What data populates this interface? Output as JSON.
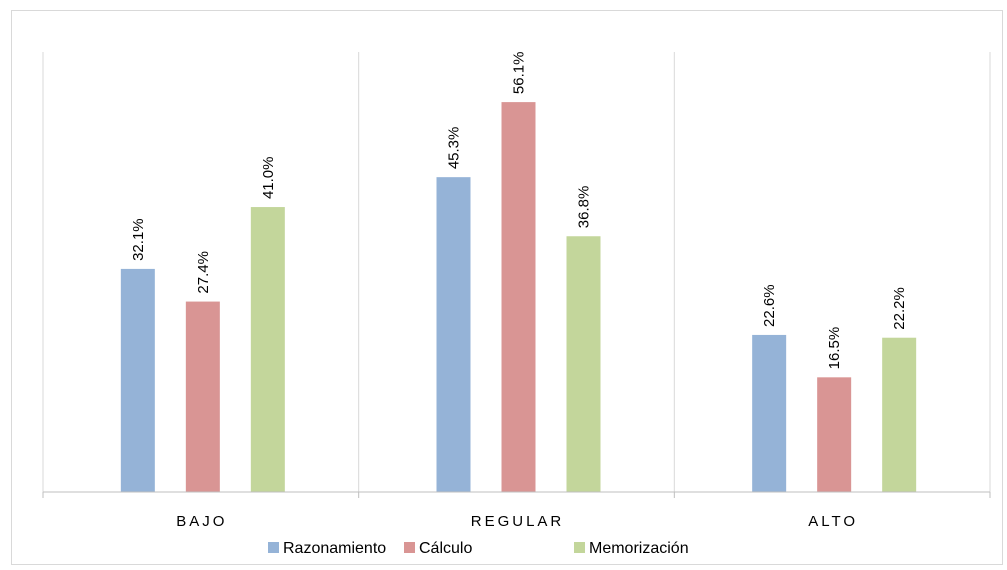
{
  "chart_data": {
    "type": "bar",
    "categories": [
      "BAJO",
      "REGULAR",
      "ALTO"
    ],
    "series": [
      {
        "name": "Razonamiento",
        "values": [
          32.1,
          45.3,
          22.6
        ],
        "labels": [
          "32.1%",
          "45.3%",
          "22.6%"
        ],
        "color": "#95b3d7"
      },
      {
        "name": "Cálculo",
        "values": [
          27.4,
          56.1,
          16.5
        ],
        "labels": [
          "27.4%",
          "56.1%",
          "16.5%"
        ],
        "color": "#d99594"
      },
      {
        "name": "Memorización",
        "values": [
          41.0,
          36.8,
          22.2
        ],
        "labels": [
          "41.0%",
          "36.8%",
          "22.2%"
        ],
        "color": "#c3d69b"
      }
    ],
    "ylim": [
      0,
      60
    ],
    "grid": false,
    "legend_position": "bottom",
    "title": "",
    "xlabel": "",
    "ylabel": ""
  }
}
